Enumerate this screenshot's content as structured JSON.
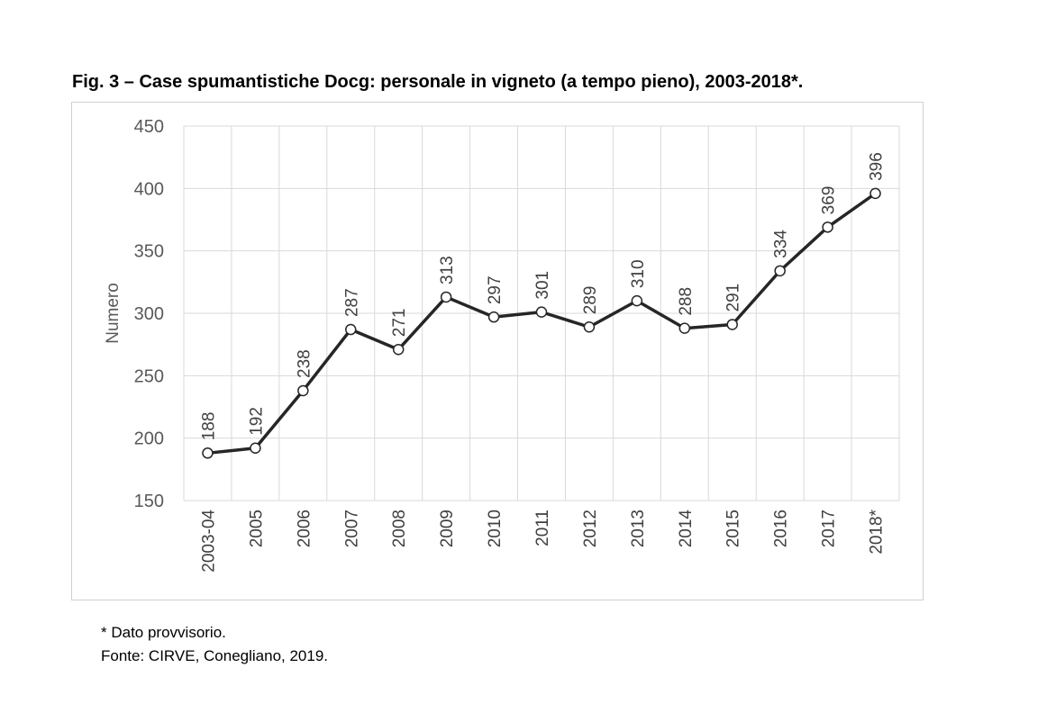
{
  "title": "Fig. 3 – Case spumantistiche Docg: personale in vigneto (a tempo pieno), 2003-2018*.",
  "footnotes": [
    "* Dato provvisorio.",
    "Fonte: CIRVE, Conegliano, 2019."
  ],
  "chart_data": {
    "type": "line",
    "title": "",
    "xlabel": "",
    "ylabel": "Numero",
    "ylim": [
      150,
      450
    ],
    "yticks": [
      150,
      200,
      250,
      300,
      350,
      400,
      450
    ],
    "grid": true,
    "categories": [
      "2003-04",
      "2005",
      "2006",
      "2007",
      "2008",
      "2009",
      "2010",
      "2011",
      "2012",
      "2013",
      "2014",
      "2015",
      "2016",
      "2017",
      "2018*"
    ],
    "series": [
      {
        "values": [
          188,
          192,
          238,
          287,
          271,
          313,
          297,
          301,
          289,
          310,
          288,
          291,
          334,
          369,
          396
        ],
        "color": "#262626"
      }
    ],
    "data_labels": true
  }
}
